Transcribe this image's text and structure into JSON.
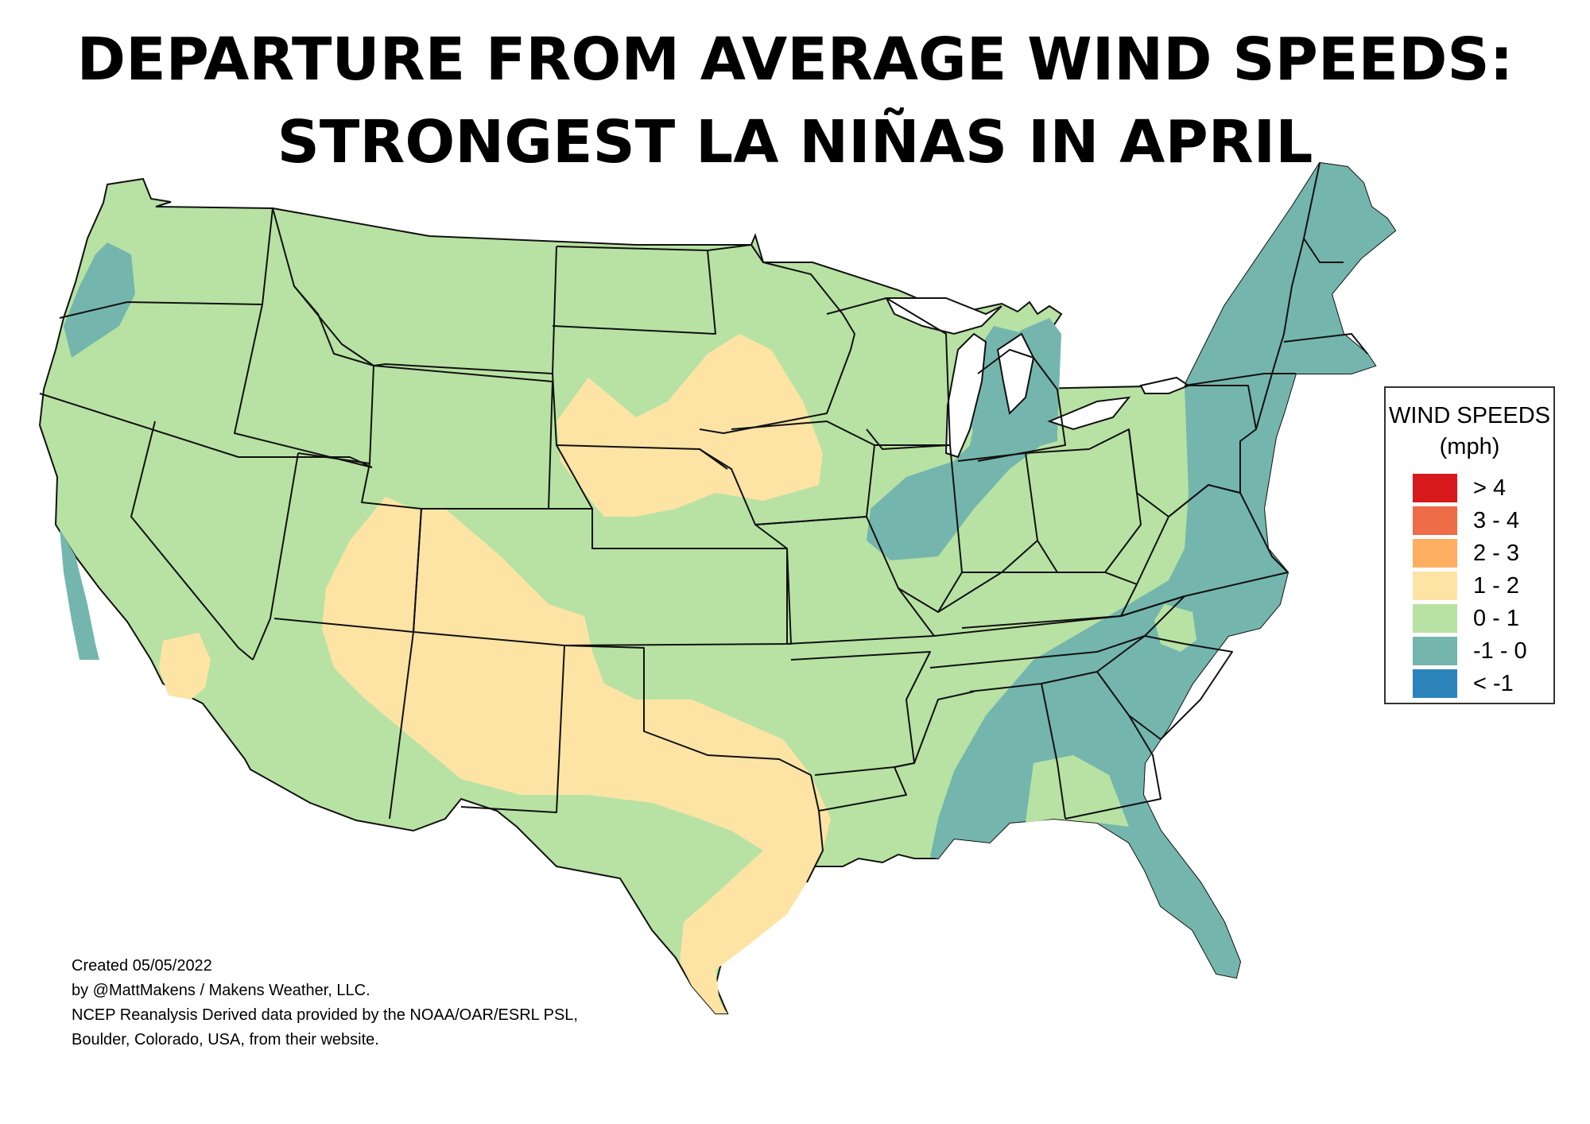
{
  "title_line1": "DEPARTURE FROM AVERAGE WIND SPEEDS:",
  "title_line2": "STRONGEST LA NIÑAS IN APRIL",
  "legend": {
    "title_line1": "WIND SPEEDS",
    "title_line2": "(mph)",
    "items": [
      {
        "label": "> 4",
        "color": "#d7191c"
      },
      {
        "label": "3 - 4",
        "color": "#ee6c47"
      },
      {
        "label": "2 - 3",
        "color": "#fdae61"
      },
      {
        "label": "1 - 2",
        "color": "#fde4a5"
      },
      {
        "label": "0 - 1",
        "color": "#b8e2a3"
      },
      {
        "label": "-1 - 0",
        "color": "#74b6ad"
      },
      {
        "label": "< -1",
        "color": "#2b83ba"
      }
    ]
  },
  "credit": {
    "line1": "Created 05/05/2022",
    "line2": "by @MattMakens / Makens Weather, LLC.",
    "line3": "NCEP Reanalysis Derived data provided by the NOAA/OAR/ESRL PSL,",
    "line4": "Boulder, Colorado, USA, from their website."
  },
  "map_colors": {
    "land": "#b8e2a3",
    "positive_zone": "#fde4a5",
    "negative_zone": "#74b6ad",
    "lake": "#ffffff",
    "border": "#111111"
  }
}
